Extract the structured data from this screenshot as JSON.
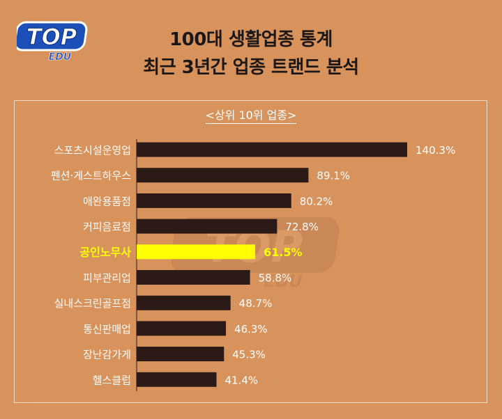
{
  "logo": {
    "text_top": "TOP",
    "text_bottom": "EDU"
  },
  "title_line1": "100대 생활업종 통계",
  "title_line2": "최근 3년간 업종 트랜드 분석",
  "colors": {
    "background": "#d8935d",
    "bar": "#2b1a16",
    "highlight_bar": "#ffff00",
    "highlight_text": "#ffff00",
    "label_text": "#ffffff"
  },
  "chart_data": {
    "type": "bar",
    "orientation": "horizontal",
    "title": "<상위 10위 업종>",
    "categories": [
      "스포츠시설운영업",
      "펜션·게스트하우스",
      "애완용품점",
      "커피음료점",
      "공인노무사",
      "피부관리업",
      "실내스크린골프점",
      "통신판매업",
      "장난감가게",
      "헬스클럽"
    ],
    "values": [
      140.3,
      89.1,
      80.2,
      72.8,
      61.5,
      58.8,
      48.7,
      46.3,
      45.3,
      41.4
    ],
    "value_labels": [
      "140.3%",
      "89.1%",
      "80.2%",
      "72.8%",
      "61.5%",
      "58.8%",
      "48.7%",
      "46.3%",
      "45.3%",
      "41.4%"
    ],
    "highlight_index": 4,
    "unit": "%",
    "xlim": [
      0,
      140.3
    ],
    "grid": false,
    "legend": "none"
  }
}
